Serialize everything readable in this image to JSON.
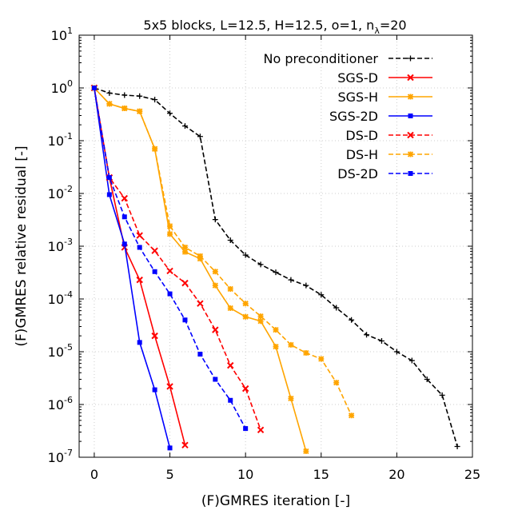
{
  "chart_data": {
    "type": "line",
    "title_main": "5x5 blocks, L=12.5, H=12.5, o=1, n",
    "title_sub": "λ",
    "title_tail": "=20",
    "xlabel": "(F)GMRES iteration [-]",
    "ylabel": "(F)GMRES relative residual [-]",
    "xlim": [
      -1,
      25
    ],
    "ylim_log10": [
      -7,
      1
    ],
    "xticks": [
      0,
      5,
      10,
      15,
      20,
      25
    ],
    "yticks_exp": [
      1,
      0,
      -1,
      -2,
      -3,
      -4,
      -5,
      -6,
      -7
    ],
    "grid": true,
    "legend_position": "top-right",
    "series": [
      {
        "name": "No preconditioner",
        "color": "#000000",
        "dash": true,
        "marker": "plus",
        "x": [
          0,
          1,
          2,
          3,
          4,
          5,
          6,
          7,
          8,
          9,
          10,
          11,
          12,
          13,
          14,
          15,
          16,
          17,
          18,
          19,
          20,
          21,
          22,
          23,
          24
        ],
        "y": [
          1,
          0.8,
          0.73,
          0.7,
          0.6,
          0.33,
          0.19,
          0.12,
          0.0032,
          0.0013,
          0.00068,
          0.00045,
          0.00032,
          0.00023,
          0.00018,
          0.00012,
          6.8e-05,
          4e-05,
          2.1e-05,
          1.6e-05,
          1e-05,
          6.8e-06,
          3e-06,
          1.5e-06,
          1.6e-07
        ]
      },
      {
        "name": "SGS-D",
        "color": "#ff0000",
        "dash": false,
        "marker": "x",
        "x": [
          0,
          1,
          2,
          3,
          4,
          5,
          6
        ],
        "y": [
          1,
          0.02,
          0.00095,
          0.00023,
          2e-05,
          2.2e-06,
          1.7e-07
        ]
      },
      {
        "name": "SGS-H",
        "color": "#ffa500",
        "dash": false,
        "marker": "star",
        "x": [
          0,
          1,
          2,
          3,
          4,
          5,
          6,
          7,
          8,
          9,
          10,
          11,
          12,
          13,
          14
        ],
        "y": [
          1,
          0.5,
          0.41,
          0.36,
          0.07,
          0.0017,
          0.00078,
          0.00058,
          0.00018,
          6.7e-05,
          4.6e-05,
          3.8e-05,
          1.25e-05,
          1.3e-06,
          1.3e-07
        ]
      },
      {
        "name": "SGS-2D",
        "color": "#0000ff",
        "dash": false,
        "marker": "square",
        "x": [
          0,
          1,
          2,
          3,
          4,
          5
        ],
        "y": [
          1,
          0.0095,
          0.0011,
          1.5e-05,
          1.9e-06,
          1.5e-07
        ]
      },
      {
        "name": "DS-D",
        "color": "#ff0000",
        "dash": true,
        "marker": "x",
        "x": [
          0,
          1,
          2,
          3,
          4,
          5,
          6,
          7,
          8,
          9,
          10,
          11
        ],
        "y": [
          1,
          0.02,
          0.0081,
          0.0016,
          0.00082,
          0.00034,
          0.0002,
          8.2e-05,
          2.6e-05,
          5.5e-06,
          2e-06,
          3.3e-07
        ]
      },
      {
        "name": "DS-H",
        "color": "#ffa500",
        "dash": true,
        "marker": "star",
        "x": [
          0,
          1,
          2,
          3,
          4,
          5,
          6,
          7,
          8,
          9,
          10,
          11,
          12,
          13,
          14,
          15,
          16,
          17
        ],
        "y": [
          1,
          0.5,
          0.41,
          0.36,
          0.07,
          0.0024,
          0.00095,
          0.00065,
          0.00033,
          0.000155,
          8.2e-05,
          4.7e-05,
          2.6e-05,
          1.35e-05,
          9.5e-06,
          7.3e-06,
          2.6e-06,
          6.2e-07
        ]
      },
      {
        "name": "DS-2D",
        "color": "#0000ff",
        "dash": true,
        "marker": "square",
        "x": [
          0,
          1,
          2,
          3,
          4,
          5,
          6,
          7,
          8,
          9,
          10
        ],
        "y": [
          1,
          0.02,
          0.0036,
          0.00095,
          0.00033,
          0.000125,
          4e-05,
          9e-06,
          3e-06,
          1.2e-06,
          3.5e-07
        ]
      }
    ]
  }
}
